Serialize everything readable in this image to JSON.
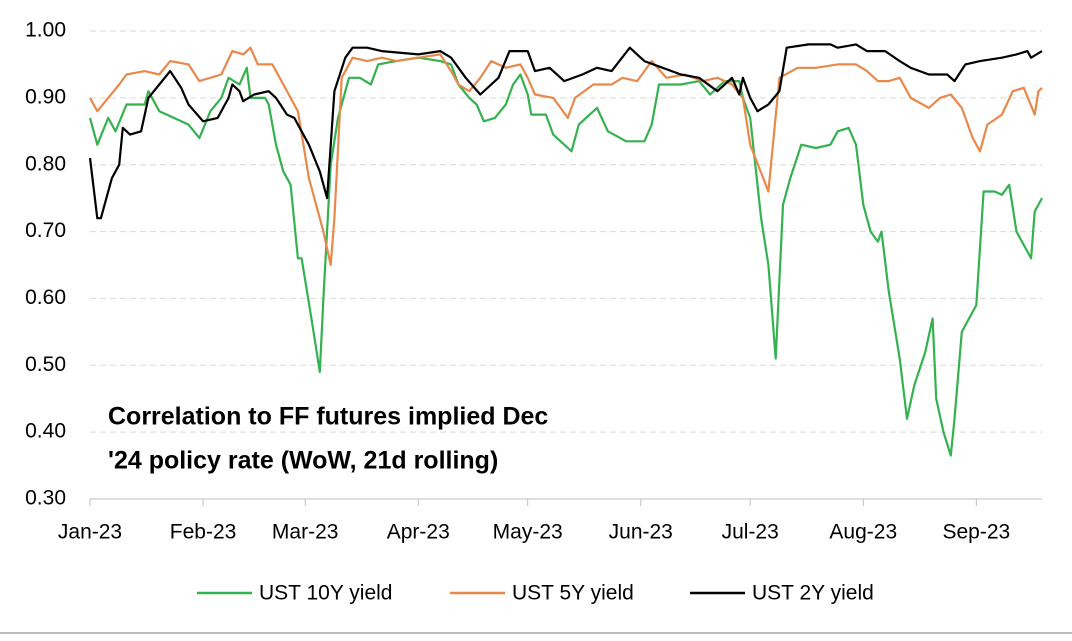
{
  "chart_data": {
    "type": "line",
    "annotation_lines": [
      "Correlation to FF futures implied Dec",
      "'24 policy rate (WoW, 21d rolling)"
    ],
    "xlim": [
      0,
      261
    ],
    "xticks": [
      {
        "value": 0,
        "label": "Jan-23"
      },
      {
        "value": 31,
        "label": "Feb-23"
      },
      {
        "value": 59,
        "label": "Mar-23"
      },
      {
        "value": 90,
        "label": "Apr-23"
      },
      {
        "value": 120,
        "label": "May-23"
      },
      {
        "value": 151,
        "label": "Jun-23"
      },
      {
        "value": 181,
        "label": "Jul-23"
      },
      {
        "value": 212,
        "label": "Aug-23"
      },
      {
        "value": 243,
        "label": "Sep-23"
      }
    ],
    "ylim": [
      0.3,
      1.0
    ],
    "yticks": [
      {
        "value": 0.3,
        "label": "0.30"
      },
      {
        "value": 0.4,
        "label": "0.40"
      },
      {
        "value": 0.5,
        "label": "0.50"
      },
      {
        "value": 0.6,
        "label": "0.60"
      },
      {
        "value": 0.7,
        "label": "0.70"
      },
      {
        "value": 0.8,
        "label": "0.80"
      },
      {
        "value": 0.9,
        "label": "0.90"
      },
      {
        "value": 1.0,
        "label": "1.00"
      }
    ],
    "grid": true,
    "legend": "bottom",
    "series": [
      {
        "name": "UST 10Y yield",
        "color": "#33b24f",
        "x": [
          0,
          2,
          5,
          7,
          10,
          15,
          16,
          19,
          23,
          27,
          30,
          33,
          36,
          38,
          41,
          43,
          44,
          48,
          49,
          51,
          53,
          55,
          57,
          58,
          61,
          63,
          64,
          66,
          68,
          71,
          74,
          77,
          79,
          84,
          90,
          96,
          99,
          101,
          104,
          106,
          108,
          111,
          114,
          116,
          118,
          120,
          121,
          125,
          127,
          132,
          134,
          139,
          142,
          147,
          152,
          154,
          156,
          162,
          167,
          170,
          174,
          178,
          179,
          181,
          184,
          186,
          188,
          190,
          192,
          195,
          199,
          203,
          205,
          208,
          210,
          212,
          214,
          216,
          217,
          219,
          222,
          224,
          226,
          229,
          231,
          232,
          234,
          236,
          237,
          239,
          243,
          245,
          248,
          250,
          252,
          254,
          258,
          259,
          261
        ],
        "values": [
          0.87,
          0.83,
          0.87,
          0.85,
          0.89,
          0.89,
          0.91,
          0.88,
          0.87,
          0.86,
          0.84,
          0.88,
          0.9,
          0.93,
          0.92,
          0.945,
          0.9,
          0.9,
          0.89,
          0.83,
          0.79,
          0.77,
          0.66,
          0.66,
          0.56,
          0.49,
          0.6,
          0.8,
          0.87,
          0.93,
          0.93,
          0.92,
          0.95,
          0.955,
          0.96,
          0.955,
          0.95,
          0.92,
          0.9,
          0.89,
          0.865,
          0.87,
          0.89,
          0.92,
          0.935,
          0.905,
          0.875,
          0.875,
          0.845,
          0.82,
          0.86,
          0.885,
          0.85,
          0.835,
          0.835,
          0.86,
          0.92,
          0.92,
          0.925,
          0.905,
          0.925,
          0.925,
          0.9,
          0.87,
          0.72,
          0.65,
          0.51,
          0.74,
          0.78,
          0.83,
          0.825,
          0.83,
          0.85,
          0.855,
          0.83,
          0.74,
          0.7,
          0.685,
          0.7,
          0.61,
          0.51,
          0.42,
          0.47,
          0.52,
          0.57,
          0.45,
          0.4,
          0.365,
          0.42,
          0.55,
          0.59,
          0.76,
          0.76,
          0.755,
          0.77,
          0.7,
          0.66,
          0.73,
          0.75
        ]
      },
      {
        "name": "UST 5Y yield",
        "color": "#e8894b",
        "x": [
          0,
          2,
          5,
          8,
          10,
          15,
          19,
          22,
          27,
          30,
          36,
          39,
          42,
          44,
          46,
          50,
          52,
          55,
          57,
          60,
          64,
          66,
          67,
          69,
          72,
          76,
          80,
          84,
          90,
          96,
          99,
          101,
          104,
          107,
          110,
          114,
          118,
          120,
          122,
          127,
          131,
          133,
          138,
          143,
          146,
          150,
          154,
          158,
          163,
          168,
          172,
          176,
          179,
          181,
          186,
          189,
          194,
          199,
          205,
          210,
          213,
          216,
          219,
          222,
          225,
          230,
          233,
          236,
          239,
          242,
          244,
          246,
          250,
          253,
          256,
          259,
          260,
          261
        ],
        "values": [
          0.9,
          0.88,
          0.9,
          0.92,
          0.935,
          0.94,
          0.935,
          0.955,
          0.95,
          0.925,
          0.935,
          0.97,
          0.965,
          0.975,
          0.95,
          0.95,
          0.93,
          0.9,
          0.88,
          0.78,
          0.7,
          0.65,
          0.72,
          0.93,
          0.96,
          0.955,
          0.96,
          0.955,
          0.96,
          0.965,
          0.94,
          0.92,
          0.91,
          0.93,
          0.955,
          0.945,
          0.95,
          0.93,
          0.905,
          0.9,
          0.87,
          0.9,
          0.92,
          0.92,
          0.93,
          0.925,
          0.955,
          0.93,
          0.935,
          0.925,
          0.93,
          0.92,
          0.9,
          0.83,
          0.76,
          0.93,
          0.945,
          0.945,
          0.95,
          0.95,
          0.94,
          0.925,
          0.925,
          0.93,
          0.9,
          0.885,
          0.9,
          0.905,
          0.885,
          0.84,
          0.82,
          0.86,
          0.875,
          0.91,
          0.915,
          0.875,
          0.91,
          0.915
        ]
      },
      {
        "name": "UST 2Y yield",
        "color": "#000000",
        "x": [
          0,
          2,
          3,
          6,
          8,
          9,
          11,
          14,
          16,
          19,
          22,
          25,
          27,
          31,
          35,
          38,
          39,
          41,
          42,
          45,
          49,
          51,
          54,
          56,
          60,
          63,
          65,
          67,
          70,
          72,
          76,
          80,
          90,
          96,
          99,
          103,
          107,
          112,
          115,
          120,
          122,
          126,
          130,
          135,
          139,
          143,
          148,
          152,
          157,
          162,
          167,
          172,
          176,
          178,
          179,
          181,
          183,
          186,
          189,
          191,
          197,
          203,
          205,
          210,
          213,
          218,
          222,
          225,
          230,
          235,
          237,
          240,
          244,
          250,
          254,
          257,
          258,
          261
        ],
        "values": [
          0.81,
          0.72,
          0.72,
          0.78,
          0.8,
          0.855,
          0.845,
          0.85,
          0.9,
          0.92,
          0.94,
          0.915,
          0.89,
          0.865,
          0.87,
          0.9,
          0.92,
          0.91,
          0.895,
          0.905,
          0.91,
          0.9,
          0.875,
          0.87,
          0.83,
          0.79,
          0.75,
          0.91,
          0.96,
          0.975,
          0.975,
          0.97,
          0.965,
          0.97,
          0.96,
          0.93,
          0.905,
          0.93,
          0.97,
          0.97,
          0.94,
          0.945,
          0.925,
          0.935,
          0.945,
          0.94,
          0.975,
          0.955,
          0.945,
          0.935,
          0.93,
          0.91,
          0.93,
          0.905,
          0.93,
          0.9,
          0.88,
          0.89,
          0.91,
          0.975,
          0.98,
          0.98,
          0.975,
          0.98,
          0.97,
          0.97,
          0.955,
          0.945,
          0.935,
          0.935,
          0.925,
          0.95,
          0.955,
          0.96,
          0.965,
          0.97,
          0.96,
          0.97
        ]
      }
    ]
  }
}
